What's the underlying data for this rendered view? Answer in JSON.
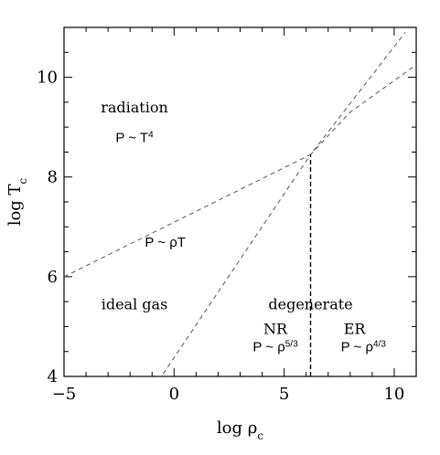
{
  "chart_data": {
    "type": "line",
    "title": "",
    "xlabel": "log ρ",
    "xlabel_sub": "c",
    "ylabel": "log T",
    "ylabel_sub": "c",
    "xlim": [
      -5,
      11
    ],
    "ylim": [
      4,
      11
    ],
    "x_ticks": [
      -5,
      0,
      5,
      10
    ],
    "x_tick_labels": [
      "−5",
      "0",
      "5",
      "10"
    ],
    "y_ticks": [
      4,
      6,
      8,
      10
    ],
    "y_tick_labels": [
      "4",
      "6",
      "8",
      "10"
    ],
    "x_minor_step": 1,
    "y_minor_step": 0.5,
    "grid": false,
    "boundaries": [
      {
        "style": "dashed",
        "points": [
          [
            -5,
            6.0
          ],
          [
            6.2,
            8.45
          ],
          [
            10.5,
            10.9
          ]
        ]
      },
      {
        "style": "dashed",
        "points": [
          [
            -0.5,
            4.05
          ],
          [
            6.2,
            8.45
          ],
          [
            8.0,
            9.3
          ],
          [
            11,
            10.25
          ]
        ]
      },
      {
        "style": "dashed-bold",
        "points": [
          [
            6.2,
            4.0
          ],
          [
            6.2,
            8.45
          ]
        ]
      }
    ],
    "annotations": [
      {
        "text": "radiation",
        "font": "serif",
        "x": -1.8,
        "y": 9.3
      },
      {
        "text": "P ~ T",
        "sup": "4",
        "font": "sans",
        "x": -1.8,
        "y": 8.7
      },
      {
        "text": "P ~ ρT",
        "font": "sans",
        "x": -0.4,
        "y": 6.6
      },
      {
        "text": "ideal gas",
        "font": "serif",
        "x": -1.8,
        "y": 5.35
      },
      {
        "text": "degenerate",
        "font": "serif",
        "x": 6.2,
        "y": 5.35
      },
      {
        "text": "NR",
        "font": "serif",
        "x": 4.6,
        "y": 4.85
      },
      {
        "text": "P ~ ρ",
        "sup": "5/3",
        "font": "sans",
        "x": 4.6,
        "y": 4.5
      },
      {
        "text": "ER",
        "font": "serif",
        "x": 8.2,
        "y": 4.85
      },
      {
        "text": "P ~ ρ",
        "sup": "4/3",
        "font": "sans",
        "x": 8.6,
        "y": 4.5
      }
    ]
  }
}
